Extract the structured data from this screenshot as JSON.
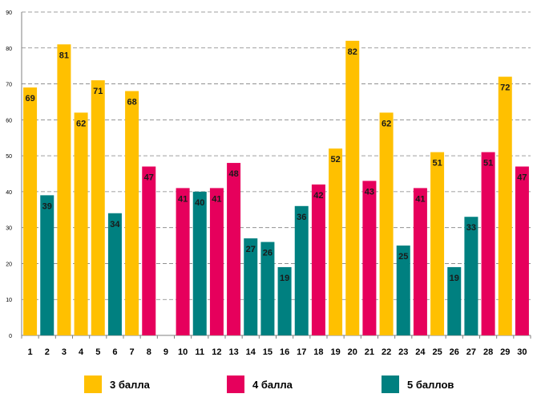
{
  "chart_data": {
    "type": "bar",
    "title": "",
    "xlabel": "",
    "ylabel": "",
    "ylim": [
      0,
      90
    ],
    "yticks": [
      0,
      10,
      20,
      30,
      40,
      50,
      60,
      70,
      80,
      90
    ],
    "grid": true,
    "categories": [
      "1",
      "2",
      "3",
      "4",
      "5",
      "6",
      "7",
      "8",
      "9",
      "10",
      "11",
      "12",
      "13",
      "14",
      "15",
      "16",
      "17",
      "18",
      "19",
      "20",
      "21",
      "22",
      "23",
      "24",
      "25",
      "26",
      "27",
      "28",
      "29",
      "30"
    ],
    "values": [
      69,
      39,
      81,
      62,
      71,
      34,
      68,
      47,
      null,
      41,
      40,
      41,
      48,
      27,
      26,
      19,
      36,
      42,
      52,
      82,
      43,
      62,
      25,
      41,
      51,
      19,
      33,
      51,
      72,
      47
    ],
    "groups": [
      "3 балла",
      "5 баллов",
      "3 балла",
      "3 балла",
      "3 балла",
      "5 баллов",
      "3 балла",
      "4 балла",
      null,
      "4 балла",
      "5 баллов",
      "4 балла",
      "4 балла",
      "5 баллов",
      "5 баллов",
      "5 баллов",
      "5 баллов",
      "4 балла",
      "3 балла",
      "3 балла",
      "4 балла",
      "3 балла",
      "5 баллов",
      "4 балла",
      "3 балла",
      "5 баллов",
      "5 баллов",
      "4 балла",
      "3 балла",
      "4 балла"
    ],
    "legend": [
      {
        "name": "3 балла",
        "color": "#FFC000"
      },
      {
        "name": "4 балла",
        "color": "#E6005C"
      },
      {
        "name": "5 баллов",
        "color": "#008080"
      }
    ],
    "legend_position": "bottom"
  }
}
